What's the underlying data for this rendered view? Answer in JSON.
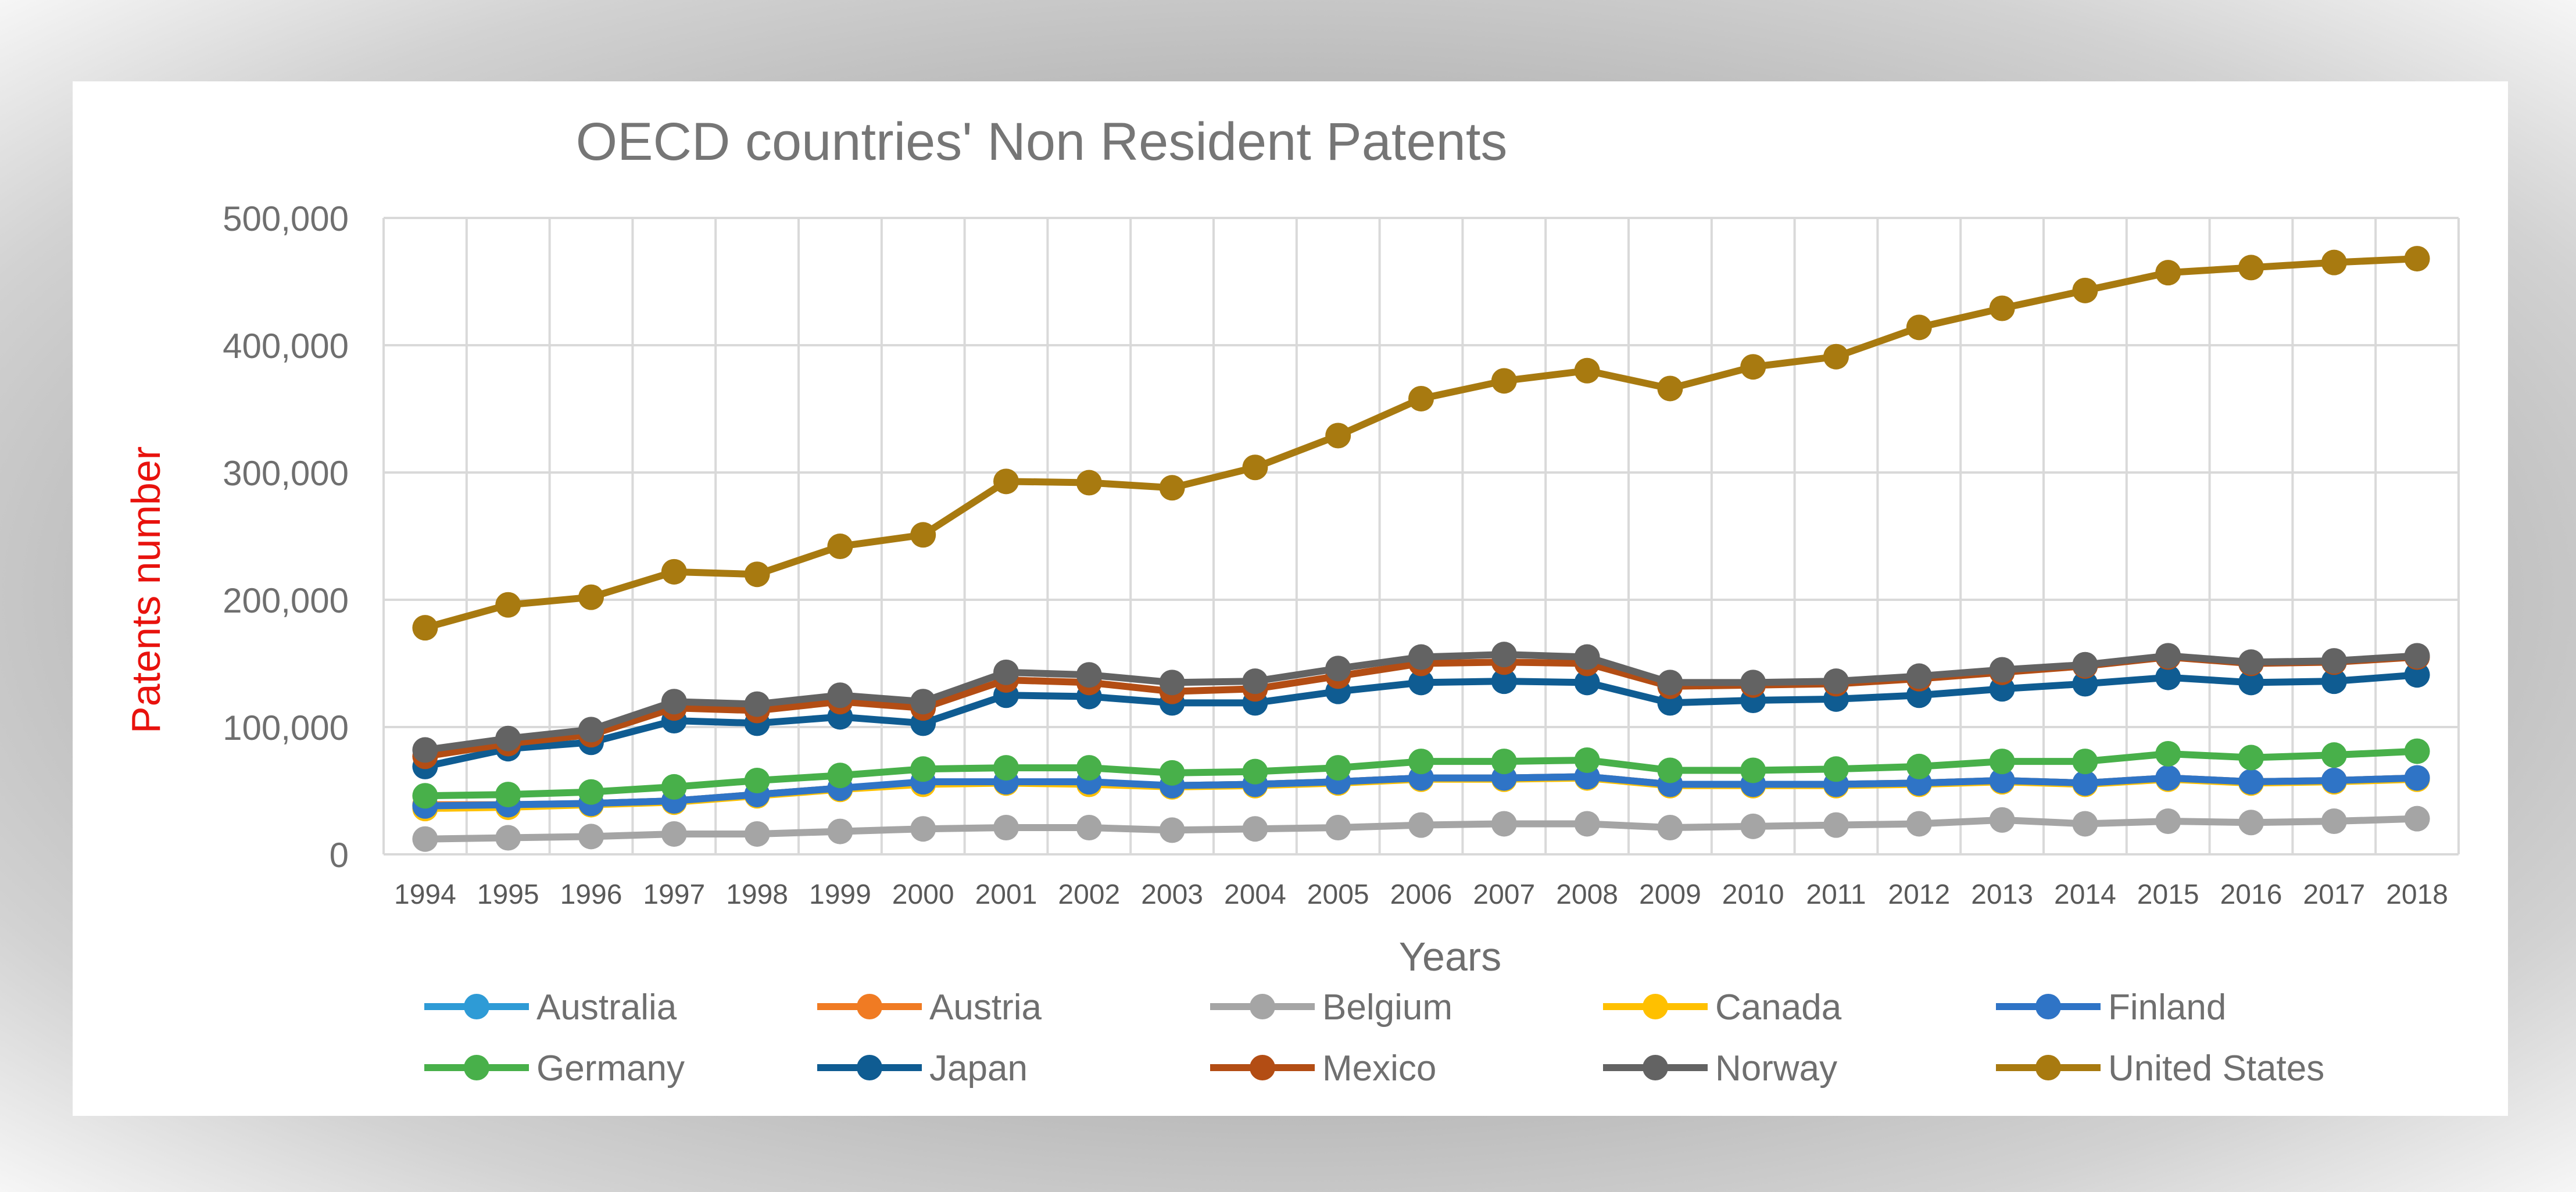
{
  "chart_data": {
    "type": "line",
    "title": "OECD countries' Non Resident Patents",
    "xlabel": "Years",
    "ylabel": "Patents number",
    "ylim": [
      0,
      500000
    ],
    "y_ticks": [
      0,
      100000,
      200000,
      300000,
      400000,
      500000
    ],
    "y_tick_labels": [
      "0",
      "100,000",
      "200,000",
      "300,000",
      "400,000",
      "500,000"
    ],
    "grid": true,
    "legend_position": "bottom",
    "categories": [
      "1994",
      "1995",
      "1996",
      "1997",
      "1998",
      "1999",
      "2000",
      "2001",
      "2002",
      "2003",
      "2004",
      "2005",
      "2006",
      "2007",
      "2008",
      "2009",
      "2010",
      "2011",
      "2012",
      "2013",
      "2014",
      "2015",
      "2016",
      "2017",
      "2018"
    ],
    "series": [
      {
        "name": "Australia",
        "color": "#2e9bd6",
        "values": [
          38000,
          38000,
          40000,
          42000,
          47000,
          52000,
          56000,
          57000,
          56000,
          54000,
          55000,
          57000,
          60000,
          60000,
          61000,
          55000,
          55000,
          55000,
          56000,
          58000,
          56000,
          60000,
          57000,
          58000,
          60000
        ]
      },
      {
        "name": "Austria",
        "color": "#f07b23",
        "values": [
          39000,
          39000,
          40000,
          42000,
          47000,
          52000,
          56000,
          57000,
          56000,
          54000,
          55000,
          57000,
          60000,
          60000,
          61000,
          55000,
          55000,
          55000,
          56000,
          58000,
          56000,
          60000,
          57000,
          58000,
          60000
        ]
      },
      {
        "name": "Belgium",
        "color": "#a5a5a5",
        "values": [
          12000,
          13000,
          14000,
          16000,
          16000,
          18000,
          20000,
          21000,
          21000,
          19000,
          20000,
          21000,
          23000,
          24000,
          24000,
          21000,
          22000,
          23000,
          24000,
          27000,
          24000,
          26000,
          25000,
          26000,
          28000
        ]
      },
      {
        "name": "Canada",
        "color": "#ffc000",
        "values": [
          36000,
          37000,
          39000,
          41000,
          46000,
          51000,
          55000,
          56000,
          55000,
          53000,
          54000,
          56000,
          59000,
          59000,
          60000,
          54000,
          54000,
          54000,
          55000,
          57000,
          55000,
          59000,
          56000,
          57000,
          59000
        ]
      },
      {
        "name": "Finland",
        "color": "#2f74c6",
        "values": [
          38000,
          39000,
          40000,
          42000,
          47000,
          52000,
          57000,
          57000,
          57000,
          54000,
          55000,
          57000,
          60000,
          60000,
          61000,
          55000,
          55000,
          55000,
          56000,
          58000,
          56000,
          60000,
          57000,
          58000,
          60000
        ]
      },
      {
        "name": "Germany",
        "color": "#48b04a",
        "values": [
          46000,
          47000,
          49000,
          53000,
          58000,
          62000,
          67000,
          68000,
          68000,
          64000,
          65000,
          68000,
          73000,
          73000,
          74000,
          66000,
          66000,
          67000,
          69000,
          73000,
          73000,
          79000,
          76000,
          78000,
          81000
        ]
      },
      {
        "name": "Japan",
        "color": "#0f5c92",
        "values": [
          69000,
          83000,
          88000,
          105000,
          103000,
          108000,
          103000,
          125000,
          124000,
          119000,
          119000,
          128000,
          135000,
          136000,
          135000,
          119000,
          121000,
          122000,
          125000,
          130000,
          134000,
          139000,
          135000,
          136000,
          141000
        ]
      },
      {
        "name": "Mexico",
        "color": "#b34d14",
        "values": [
          77000,
          87000,
          94000,
          115000,
          113000,
          120000,
          115000,
          137000,
          135000,
          128000,
          130000,
          140000,
          150000,
          151000,
          150000,
          132000,
          133000,
          134000,
          138000,
          143000,
          148000,
          155000,
          150000,
          151000,
          155000
        ]
      },
      {
        "name": "Norway",
        "color": "#636363",
        "values": [
          82000,
          91000,
          98000,
          120000,
          118000,
          125000,
          120000,
          143000,
          141000,
          135000,
          136000,
          146000,
          155000,
          157000,
          155000,
          135000,
          135000,
          136000,
          140000,
          145000,
          149000,
          156000,
          151000,
          152000,
          156000
        ]
      },
      {
        "name": "United States",
        "color": "#a87a10",
        "values": [
          178000,
          196000,
          202000,
          222000,
          220000,
          242000,
          251000,
          293000,
          292000,
          288000,
          304000,
          329000,
          358000,
          372000,
          380000,
          366000,
          383000,
          391000,
          414000,
          429000,
          443000,
          457000,
          461000,
          465000,
          468000
        ]
      }
    ]
  }
}
